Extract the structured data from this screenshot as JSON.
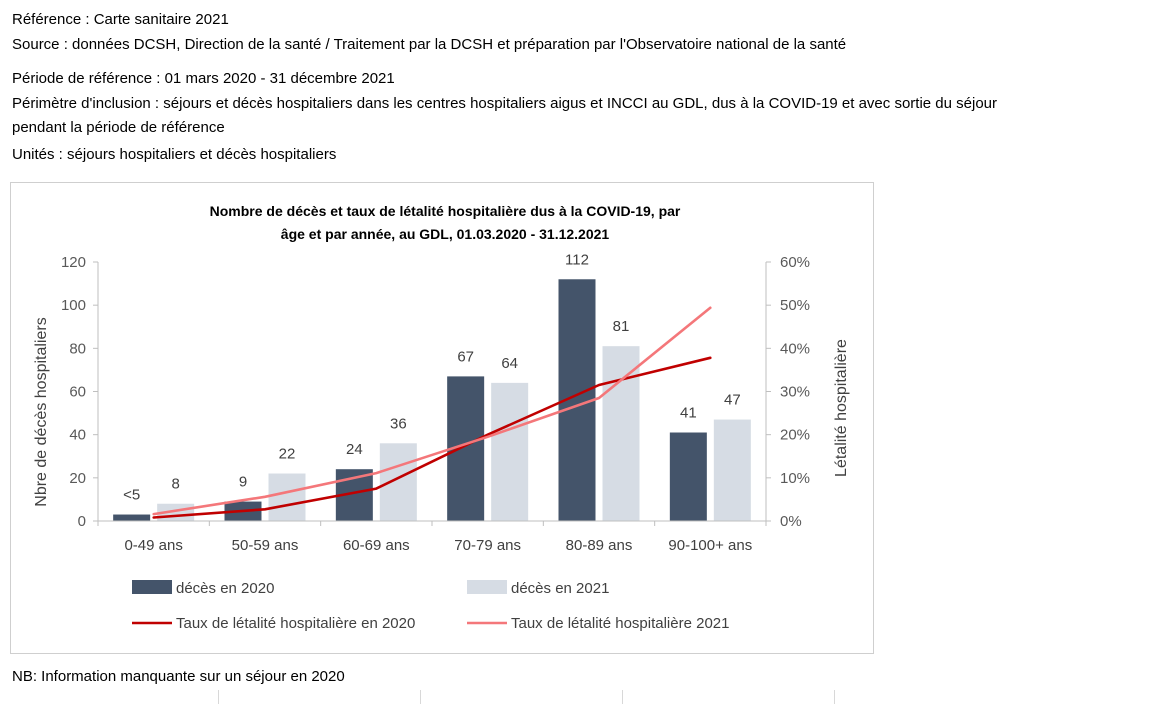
{
  "header": {
    "reference": "Référence : Carte sanitaire 2021",
    "source": "Source : données DCSH, Direction de la santé / Traitement  par la DCSH et préparation par l'Observatoire national de la santé",
    "period": "Période de référence : 01 mars 2020 - 31 décembre 2021",
    "scope": "Périmètre d'inclusion : séjours et décès hospitaliers dans les centres hospitaliers aigus et INCCI au GDL, dus à la COVID-19 et avec sortie du séjour pendant la période de référence",
    "units": "Unités : séjours hospitaliers et décès hospitaliers"
  },
  "footer": {
    "note": "NB: Information manquante sur un séjour en 2020"
  },
  "colors": {
    "bar_2020": "#44546a",
    "bar_2021": "#d6dce4",
    "line_2020": "#c00000",
    "line_2021": "#f4777a"
  },
  "chart_data": {
    "type": "bar",
    "title": "Nombre de décès et taux de létalité hospitalière dus à la COVID-19, par âge et par année, au GDL, 01.03.2020 - 31.12.2021",
    "title_lines": [
      "Nombre de décès et taux de létalité hospitalière dus à la COVID-19, par",
      "âge et par année, au GDL, 01.03.2020 - 31.12.2021"
    ],
    "categories": [
      "0-49 ans",
      "50-59 ans",
      "60-69 ans",
      "70-79 ans",
      "80-89 ans",
      "90-100+ ans"
    ],
    "ylabel": "Nbre de décès hospitaliers",
    "y2label": "Létalité hospitalière",
    "ylim": [
      0,
      120
    ],
    "yticks": [
      "0",
      "20",
      "40",
      "60",
      "80",
      "100",
      "120"
    ],
    "y2lim": [
      0,
      0.6
    ],
    "y2ticks": [
      "0%",
      "10%",
      "20%",
      "30%",
      "40%",
      "50%",
      "60%"
    ],
    "grid": false,
    "legend_position": "bottom",
    "series": [
      {
        "name": "décès en 2020",
        "kind": "bar",
        "axis": "left",
        "values": [
          3,
          9,
          24,
          67,
          112,
          41
        ],
        "labels": [
          "<5",
          "9",
          "24",
          "67",
          "112",
          "41"
        ]
      },
      {
        "name": "décès en 2021",
        "kind": "bar",
        "axis": "left",
        "values": [
          8,
          22,
          36,
          64,
          81,
          47
        ],
        "labels": [
          "8",
          "22",
          "36",
          "64",
          "81",
          "47"
        ]
      },
      {
        "name": "Taux de létalité hospitalière en 2020",
        "kind": "line",
        "axis": "right",
        "values": [
          0.008,
          0.027,
          0.075,
          0.2,
          0.315,
          0.378
        ]
      },
      {
        "name": "Taux de létalité hospitalière 2021",
        "kind": "line",
        "axis": "right",
        "values": [
          0.016,
          0.056,
          0.111,
          0.195,
          0.285,
          0.494
        ]
      }
    ]
  }
}
